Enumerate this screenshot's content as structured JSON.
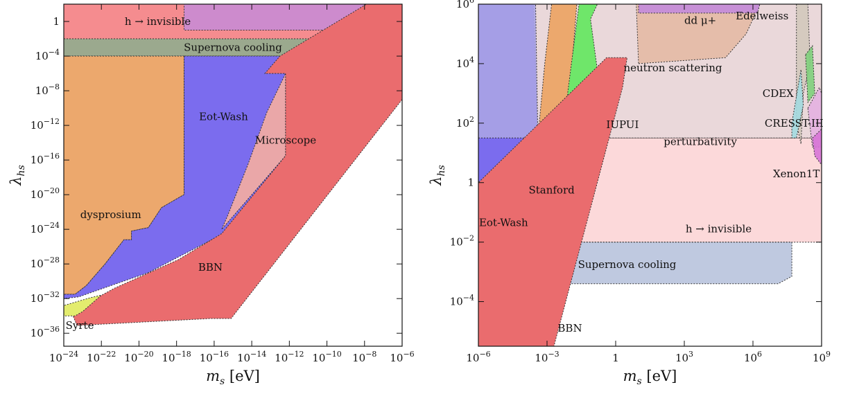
{
  "chart_data": [
    {
      "type": "area",
      "xlabel_main": "m",
      "xlabel_sub": "s",
      "xlabel_unit": "[eV]",
      "ylabel_main": "λ",
      "ylabel_sub": "hs",
      "xscale": "log",
      "yscale": "log",
      "xlim_exp": [
        -24,
        -6
      ],
      "ylim_exp": [
        -37.5,
        2
      ],
      "x_ticks": [
        "10^-24",
        "10^-22",
        "10^-20",
        "10^-18",
        "10^-16",
        "10^-14",
        "10^-12",
        "10^-10",
        "10^-8",
        "10^-6"
      ],
      "x_tick_exps": [
        -24,
        -22,
        -20,
        -18,
        -16,
        -14,
        -12,
        -10,
        -8,
        -6
      ],
      "y_ticks": [
        "1",
        "10^-4",
        "10^-8",
        "10^-12",
        "10^-16",
        "10^-20",
        "10^-24",
        "10^-28",
        "10^-32",
        "10^-36"
      ],
      "y_tick_exps": [
        0,
        -4,
        -8,
        -12,
        -16,
        -20,
        -24,
        -28,
        -32,
        -36
      ],
      "regions": [
        {
          "name": "h-invisible",
          "label": "h → invisible",
          "color": "#f36f73",
          "opacity": 0.8,
          "points": [
            [
              -24,
              2
            ],
            [
              -6,
              2
            ],
            [
              -6,
              -2
            ],
            [
              -24,
              -2
            ]
          ],
          "label_at": [
            -19,
            0
          ]
        },
        {
          "name": "supernova",
          "label": "Supernova cooling",
          "color": "#8a9a7a",
          "opacity": 0.85,
          "points": [
            [
              -24,
              -2
            ],
            [
              -6,
              -2
            ],
            [
              -6,
              -4
            ],
            [
              -24,
              -4
            ]
          ],
          "label_at": [
            -15,
            -3
          ]
        },
        {
          "name": "eot-wash-top",
          "label": "",
          "color": "#c38bdc",
          "opacity": 0.8,
          "points": [
            [
              -17.6,
              2
            ],
            [
              -6.9,
              2
            ],
            [
              -7,
              -1
            ],
            [
              -17.6,
              -1
            ]
          ],
          "label_at": null
        },
        {
          "name": "dysprosium",
          "label": "dysprosium",
          "color": "#eca86d",
          "opacity": 1,
          "points": [
            [
              -24,
              -4
            ],
            [
              -17.6,
              -4
            ],
            [
              -17.6,
              -20
            ],
            [
              -18.8,
              -21.5
            ],
            [
              -19.5,
              -23.8
            ],
            [
              -20.4,
              -24.2
            ],
            [
              -20.4,
              -25.2
            ],
            [
              -20.8,
              -25.2
            ],
            [
              -21.8,
              -28
            ],
            [
              -22.8,
              -30.5
            ],
            [
              -23.4,
              -31.5
            ],
            [
              -24,
              -31.5
            ]
          ],
          "label_at": [
            -21.5,
            -22.3
          ]
        },
        {
          "name": "eot-wash",
          "label": "Eot-Wash",
          "color": "#7b6cee",
          "opacity": 1,
          "points": [
            [
              -17.6,
              -4
            ],
            [
              -6.5,
              -4
            ],
            [
              -15.5,
              -24.5
            ],
            [
              -19.5,
              -29
            ],
            [
              -21.5,
              -30.5
            ],
            [
              -23.2,
              -31.8
            ],
            [
              -24,
              -32
            ],
            [
              -24,
              -31.5
            ],
            [
              -23.4,
              -31.5
            ],
            [
              -22.8,
              -30.5
            ],
            [
              -21.8,
              -28
            ],
            [
              -20.8,
              -25.2
            ],
            [
              -20.4,
              -25.2
            ],
            [
              -20.4,
              -24.2
            ],
            [
              -19.5,
              -23.8
            ],
            [
              -18.8,
              -21.5
            ],
            [
              -17.6,
              -20
            ]
          ],
          "label_at": [
            -15.5,
            -11
          ]
        },
        {
          "name": "microscope",
          "label": "Microscope",
          "color": "#eaa7a8",
          "opacity": 1,
          "points": [
            [
              -12.2,
              -6
            ],
            [
              -12.2,
              -15.5
            ],
            [
              -15.6,
              -24
            ],
            [
              -15.3,
              -22.5
            ],
            [
              -14.2,
              -16.5
            ],
            [
              -13.2,
              -10.5
            ]
          ],
          "label_at": [
            -12.2,
            -13.7
          ]
        },
        {
          "name": "bbn",
          "label": "BBN",
          "color": "#ea6c6e",
          "opacity": 1,
          "points": [
            [
              -6,
              -9
            ],
            [
              -15.1,
              -34.3
            ],
            [
              -16.2,
              -34.3
            ],
            [
              -23.3,
              -35.1
            ],
            [
              -23.6,
              -33.5
            ],
            [
              -21.3,
              -30.8
            ],
            [
              -17.9,
              -27.5
            ],
            [
              -15.6,
              -24.5
            ],
            [
              -12.2,
              -15.5
            ],
            [
              -12.2,
              -6
            ],
            [
              -13.3,
              -6
            ],
            [
              -12.5,
              -4
            ],
            [
              -7.9,
              2
            ],
            [
              -6,
              2
            ]
          ],
          "label_at": [
            -16.2,
            -28.4
          ]
        },
        {
          "name": "syrte",
          "label": "Syrte",
          "color": "#e3ec6e",
          "opacity": 1,
          "points": [
            [
              -24,
              -34
            ],
            [
              -24,
              -32.8
            ],
            [
              -22.6,
              -31.9
            ],
            [
              -22,
              -31.6
            ],
            [
              -23,
              -33.5
            ],
            [
              -23.4,
              -34
            ]
          ],
          "label_at": [
            -23.15,
            -35.1
          ]
        }
      ]
    },
    {
      "type": "area",
      "xlabel_main": "m",
      "xlabel_sub": "s",
      "xlabel_unit": "[eV]",
      "ylabel_main": "λ",
      "ylabel_sub": "hs",
      "xscale": "log",
      "yscale": "log",
      "xlim_exp": [
        -6,
        9
      ],
      "ylim_exp": [
        -5.5,
        6
      ],
      "x_ticks": [
        "10^-6",
        "10^-3",
        "1",
        "10^3",
        "10^6",
        "10^9"
      ],
      "x_tick_exps": [
        -6,
        -3,
        0,
        3,
        6,
        9
      ],
      "y_ticks": [
        "10^6",
        "10^4",
        "10^2",
        "1",
        "10^-2",
        "10^-4"
      ],
      "y_tick_exps": [
        6,
        4,
        2,
        0,
        -2,
        -4
      ],
      "regions": [
        {
          "name": "h-invisible",
          "label": "h → invisible",
          "color": "#fbd2d4",
          "opacity": 0.85,
          "points": [
            [
              -3.6,
              -2
            ],
            [
              9,
              -2
            ],
            [
              9,
              1.5
            ],
            [
              -0.4,
              1.5
            ]
          ],
          "label_at": [
            4.5,
            -1.55
          ]
        },
        {
          "name": "perturbativity",
          "label": "perturbativity",
          "color": "#e8d4d6",
          "opacity": 0.9,
          "points": [
            [
              -6,
              6
            ],
            [
              9,
              6
            ],
            [
              9,
              1.5
            ],
            [
              -6,
              1.5
            ]
          ],
          "label_at": [
            3.7,
            1.38
          ]
        },
        {
          "name": "supernova",
          "label": "Supernova cooling",
          "color": "#b4c0da",
          "opacity": 0.85,
          "points": [
            [
              -6,
              -2
            ],
            [
              7.7,
              -2
            ],
            [
              7.7,
              -3.15
            ],
            [
              7.1,
              -3.4
            ],
            [
              -6,
              -3.4
            ]
          ],
          "label_at": [
            0.5,
            -2.75
          ]
        },
        {
          "name": "eot-wash",
          "label": "Eot-Wash",
          "color": "#7b6cee",
          "opacity": 1,
          "points": [
            [
              -6,
              -1.2
            ],
            [
              -5.4,
              -1.2
            ],
            [
              -4.8,
              -1.1
            ],
            [
              -4.5,
              -0.6
            ],
            [
              -3.9,
              0
            ],
            [
              -3.4,
              1.5
            ],
            [
              -3.6,
              6
            ],
            [
              -6,
              6
            ]
          ],
          "label_at": [
            -4.9,
            -1.35
          ]
        },
        {
          "name": "eot-wash-upper",
          "label": "",
          "color": "#aaa4e4",
          "opacity": 0.9,
          "points": [
            [
              -6,
              1.5
            ],
            [
              -3.4,
              1.5
            ],
            [
              -3.5,
              6
            ],
            [
              -6,
              6
            ]
          ],
          "label_at": null
        },
        {
          "name": "stanford",
          "label": "Stanford",
          "color": "#eca86d",
          "opacity": 1,
          "points": [
            [
              -3.8,
              0.2
            ],
            [
              -2.9,
              0.5
            ],
            [
              -2.2,
              1.5
            ],
            [
              -1.9,
              4
            ],
            [
              -1.7,
              6
            ],
            [
              -2.8,
              6
            ],
            [
              -3.1,
              4
            ],
            [
              -3.4,
              1.5
            ]
          ],
          "label_at": [
            -2.8,
            -0.25
          ]
        },
        {
          "name": "iupui",
          "label": "IUPUI",
          "color": "#6fe66a",
          "opacity": 1,
          "points": [
            [
              -2.2,
              0.3
            ],
            [
              -0.9,
              0.5
            ],
            [
              -0.4,
              1.5
            ],
            [
              -1.1,
              5.5
            ],
            [
              -0.8,
              6
            ],
            [
              -1.6,
              6
            ],
            [
              -2.1,
              3
            ],
            [
              -2.2,
              1.5
            ]
          ],
          "label_at": [
            0.3,
            1.95
          ]
        },
        {
          "name": "neutron",
          "label": "neutron scattering",
          "color": "#e4baa4",
          "opacity": 0.9,
          "points": [
            [
              1,
              4
            ],
            [
              4.8,
              4.2
            ],
            [
              5.7,
              5
            ],
            [
              6.3,
              6
            ],
            [
              0.9,
              6
            ]
          ],
          "label_at": [
            2.5,
            3.86
          ]
        },
        {
          "name": "dd-mu",
          "label": "dd μ+",
          "color": "#c38bdc",
          "opacity": 0.9,
          "points": [
            [
              1,
              6
            ],
            [
              6.3,
              6
            ],
            [
              6.2,
              5.7
            ],
            [
              1,
              5.7
            ]
          ],
          "label_at": [
            3.7,
            5.45
          ]
        },
        {
          "name": "bbn",
          "label": "BBN",
          "color": "#ea6c6e",
          "opacity": 1,
          "points": [
            [
              -6,
              -5.5
            ],
            [
              -2.7,
              -5.5
            ],
            [
              0.3,
              3.2
            ],
            [
              0.5,
              4.2
            ],
            [
              -0.4,
              4.2
            ],
            [
              -6,
              0
            ]
          ],
          "label_at": [
            -2.0,
            -4.9
          ]
        },
        {
          "name": "edelweiss",
          "label": "Edelweiss",
          "color": "#cfc7b8",
          "opacity": 0.8,
          "points": [
            [
              7.9,
              6
            ],
            [
              8.4,
              6
            ],
            [
              8.5,
              4
            ],
            [
              8.2,
              3
            ],
            [
              8.1,
              1.3
            ],
            [
              7.9,
              2
            ]
          ],
          "label_at": [
            6.4,
            5.6
          ]
        },
        {
          "name": "cdex",
          "label": "CDEX",
          "color": "#a3dae0",
          "opacity": 0.9,
          "points": [
            [
              7.7,
              2
            ],
            [
              8.1,
              3.8
            ],
            [
              8.2,
              2.6
            ],
            [
              7.9,
              1.5
            ],
            [
              7.7,
              1.5
            ]
          ],
          "label_at": [
            7.1,
            3.0
          ]
        },
        {
          "name": "cresst",
          "label": "CRESST-III",
          "color": "#e4b1e0",
          "opacity": 0.9,
          "points": [
            [
              8.4,
              2.5
            ],
            [
              8.9,
              3.2
            ],
            [
              9,
              3
            ],
            [
              9,
              1.2
            ],
            [
              8.6,
              1.2
            ]
          ],
          "label_at": [
            7.8,
            2.0
          ]
        },
        {
          "name": "xenon",
          "label": "Xenon1T",
          "color": "#d774d6",
          "opacity": 0.9,
          "points": [
            [
              8.6,
              1.5
            ],
            [
              9,
              1.8
            ],
            [
              9,
              0.6
            ],
            [
              8.7,
              0.9
            ]
          ],
          "label_at": [
            7.9,
            0.3
          ]
        },
        {
          "name": "edelweiss-green",
          "label": "",
          "color": "#7ed07b",
          "opacity": 0.9,
          "points": [
            [
              8.3,
              4.3
            ],
            [
              8.6,
              4.6
            ],
            [
              8.7,
              3.0
            ],
            [
              8.4,
              2.7
            ]
          ],
          "label_at": null
        }
      ]
    }
  ]
}
